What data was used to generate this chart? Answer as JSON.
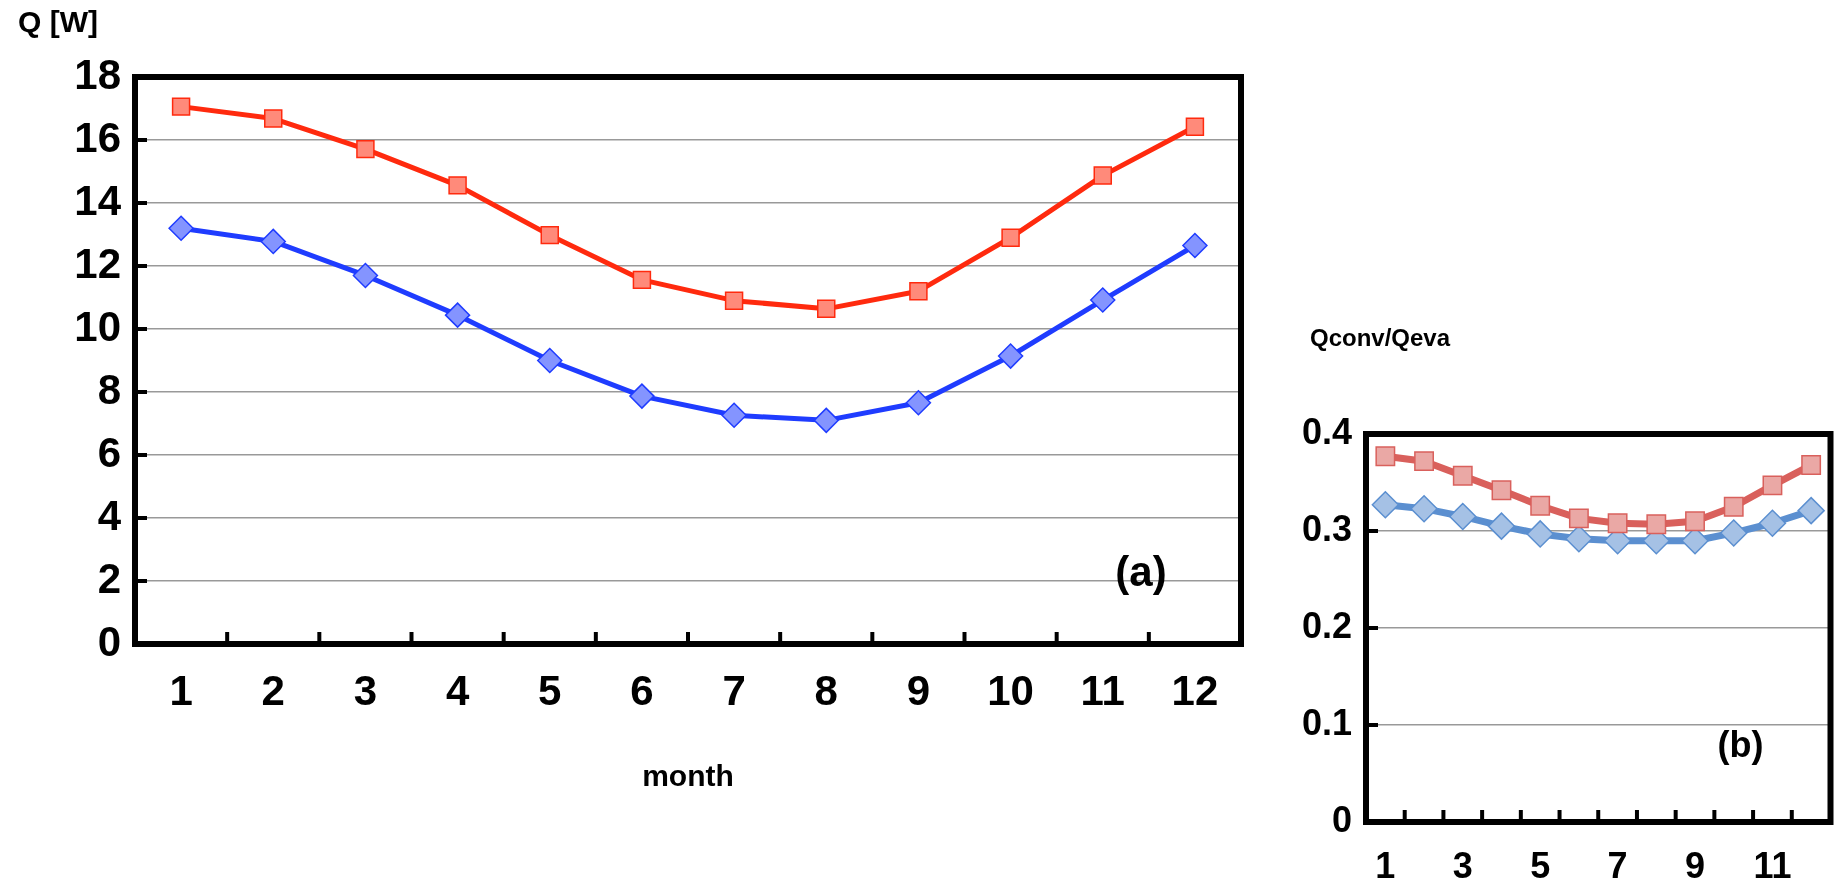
{
  "chart_data": [
    {
      "type": "line",
      "ylabel": "Q [W]",
      "xlabel": "month",
      "categories": [
        "1",
        "2",
        "3",
        "4",
        "5",
        "6",
        "7",
        "8",
        "9",
        "10",
        "11",
        "12"
      ],
      "series": [
        {
          "color": "#ff2a0e",
          "marker": "square",
          "values": [
            17.06,
            16.68,
            15.71,
            14.56,
            12.98,
            11.56,
            10.9,
            10.64,
            11.2,
            12.9,
            14.87,
            16.42
          ]
        },
        {
          "color": "#1f3cff",
          "marker": "diamond",
          "values": [
            13.2,
            12.78,
            11.7,
            10.44,
            9.0,
            7.87,
            7.26,
            7.1,
            7.66,
            9.14,
            10.92,
            12.65
          ]
        }
      ],
      "ylim": [
        0,
        18
      ],
      "yticks": [
        0,
        2,
        4,
        6,
        8,
        10,
        12,
        14,
        16,
        18
      ],
      "grid": "y",
      "annotations": [
        "(a)"
      ]
    },
    {
      "type": "line",
      "ylabel": "Qconv/Qeva",
      "categories": [
        "1",
        null,
        "3",
        null,
        "5",
        null,
        "7",
        null,
        "9",
        null,
        "11",
        null
      ],
      "series": [
        {
          "color": "#d9605c",
          "marker": "square",
          "values": [
            0.377,
            0.372,
            0.357,
            0.342,
            0.326,
            0.313,
            0.308,
            0.307,
            0.31,
            0.325,
            0.347,
            0.368
          ]
        },
        {
          "color": "#5b8fd0",
          "marker": "diamond",
          "values": [
            0.327,
            0.323,
            0.315,
            0.305,
            0.297,
            0.292,
            0.29,
            0.29,
            0.29,
            0.298,
            0.308,
            0.321
          ]
        }
      ],
      "ylim": [
        0,
        0.4
      ],
      "yticks": [
        0,
        0.1,
        0.2,
        0.3,
        0.4
      ],
      "grid": "y",
      "annotations": [
        "(b)"
      ]
    }
  ]
}
